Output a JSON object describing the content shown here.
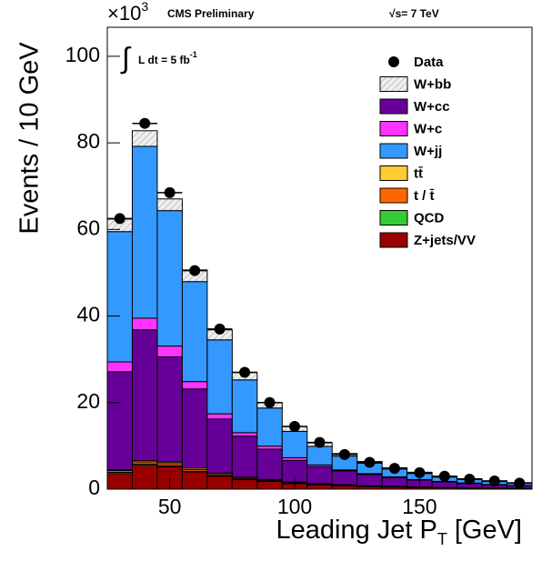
{
  "chart_data": {
    "type": "stacked_histogram",
    "multiplier": {
      "base": "×10",
      "exp": "3"
    },
    "experiment": "CMS Preliminary",
    "energy": "√s= 7 TeV",
    "lumi": {
      "integral": "∫",
      "text": "L dt = 5 fb",
      "exp": "-1"
    },
    "y_label": "Events / 10 GeV",
    "x_label": {
      "main": "Leading Jet  P",
      "sub": "T",
      "unit": "[GeV]"
    },
    "bins": [
      25,
      35,
      45,
      55,
      65,
      75,
      85,
      95,
      105,
      115,
      125,
      135,
      145,
      155,
      165,
      175,
      185,
      195
    ],
    "xlim": [
      25,
      195
    ],
    "xticks": [
      50,
      100,
      150
    ],
    "ylim": [
      0,
      106.7
    ],
    "yticks": [
      0,
      20,
      40,
      60,
      80,
      100
    ],
    "data": {
      "name": "Data",
      "color": "#000000",
      "values": [
        62.5,
        84.5,
        68.5,
        50.5,
        37,
        27,
        20,
        14.5,
        10.8,
        8,
        6.2,
        4.8,
        3.8,
        3,
        2.3,
        1.9,
        1.4
      ]
    },
    "series": [
      {
        "name": "W+bb",
        "color": "#e6e6e6",
        "hatch": true,
        "values": [
          2.9,
          3.6,
          2.7,
          2.7,
          2.3,
          1.7,
          1.3,
          1.1,
          0.8,
          0.6,
          0.4,
          0.3,
          0.3,
          0.2,
          0.2,
          0.15,
          0.1
        ]
      },
      {
        "name": "W+cc",
        "color": "#660099",
        "values": [
          22.6,
          30.2,
          24.3,
          18.3,
          12.5,
          9.5,
          7,
          5,
          3.9,
          3.2,
          2.6,
          2,
          1.6,
          1.3,
          1,
          0.7,
          0.6
        ]
      },
      {
        "name": "W+c",
        "color": "#ff33ff",
        "values": [
          2.3,
          2.7,
          2.5,
          1.7,
          1.2,
          0.8,
          0.7,
          0.6,
          0.4,
          0.2,
          0.2,
          0.2,
          0.1,
          0.1,
          0.1,
          0.1,
          0.05
        ]
      },
      {
        "name": "W+jj",
        "color": "#3399ff",
        "values": [
          30.1,
          39.7,
          31.3,
          23.1,
          17.1,
          12.2,
          8.8,
          6.1,
          4.3,
          3.2,
          2.4,
          1.8,
          1.4,
          1.0,
          0.8,
          0.7,
          0.55
        ]
      },
      {
        "name": "tt̄",
        "color": "#ffcc33",
        "values": [
          0.2,
          0.3,
          0.35,
          0.35,
          0.3,
          0.25,
          0.2,
          0.18,
          0.15,
          0.12,
          0.1,
          0.08,
          0.06,
          0.05,
          0.04,
          0.03,
          0.03
        ]
      },
      {
        "name": "t / t̄",
        "color": "#ff6600",
        "values": [
          0.4,
          0.5,
          0.5,
          0.4,
          0.3,
          0.25,
          0.2,
          0.15,
          0.12,
          0.1,
          0.08,
          0.06,
          0.05,
          0.04,
          0.03,
          0.03,
          0.02
        ]
      },
      {
        "name": "QCD",
        "color": "#33cc33",
        "values": [
          0.3,
          0.3,
          0.2,
          0.1,
          0.1,
          0.05,
          0.05,
          0.03,
          0.02,
          0.02,
          0.01,
          0.01,
          0.01,
          0.01,
          0.01,
          0.01,
          0.01
        ]
      },
      {
        "name": "Z+jets/VV",
        "color": "#990000",
        "values": [
          3.6,
          5.5,
          5.2,
          4,
          3,
          2.2,
          1.8,
          1.3,
          1,
          0.8,
          0.6,
          0.5,
          0.4,
          0.3,
          0.25,
          0.2,
          0.15
        ]
      }
    ]
  }
}
